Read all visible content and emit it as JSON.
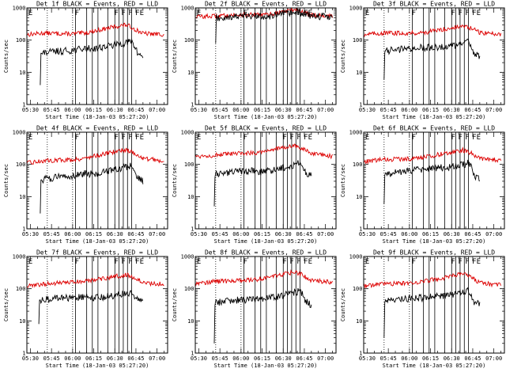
{
  "figure": {
    "colors": {
      "events": "#000000",
      "lld": "#dd0000",
      "background": "#ffffff"
    },
    "ylabel": "Counts/sec",
    "xlabel": "Start Time (18-Jan-03 05:27:20)",
    "yticks": [
      {
        "value": 1,
        "label": "1"
      },
      {
        "value": 10,
        "label": "10"
      },
      {
        "value": 100,
        "label": "100"
      },
      {
        "value": 1000,
        "label": "1000"
      }
    ],
    "xticks": [
      {
        "value": 0,
        "label": "05:30"
      },
      {
        "value": 15,
        "label": "05:45"
      },
      {
        "value": 30,
        "label": "06:00"
      },
      {
        "value": 45,
        "label": "06:15"
      },
      {
        "value": 60,
        "label": "06:30"
      },
      {
        "value": 75,
        "label": "06:45"
      },
      {
        "value": 90,
        "label": "07:00"
      }
    ]
  },
  "chart_data": [
    {
      "type": "line",
      "title": "Det 1f BLACK = Events, RED = LLD",
      "xlabel": "Start Time (18-Jan-03 05:27:20)",
      "ylabel": "Counts/sec",
      "xunits": "minutes after 05:30",
      "xlim": [
        -2.5,
        97.5
      ],
      "ylim": [
        1,
        1000
      ],
      "yscale": "log",
      "series": [
        {
          "name": "LLD",
          "color": "#dd0000",
          "x": [
            -2,
            10,
            30,
            40,
            50,
            60,
            68,
            74,
            80,
            95
          ],
          "y": [
            150,
            165,
            155,
            170,
            210,
            260,
            300,
            220,
            160,
            150
          ]
        },
        {
          "name": "Events",
          "color": "#000000",
          "start": 7,
          "spike_min": 4,
          "x": [
            7.5,
            10,
            20,
            30,
            40,
            45,
            55,
            65,
            72,
            76,
            80
          ],
          "y": [
            36,
            40,
            45,
            48,
            55,
            55,
            65,
            78,
            90,
            40,
            30
          ]
        }
      ],
      "dotted_lines": [
        12,
        30
      ],
      "solid_lines": [
        32,
        40,
        44,
        48,
        55,
        60,
        63,
        66,
        69,
        72
      ],
      "markers": [
        {
          "x": -2,
          "label": "E"
        },
        {
          "x": 31,
          "label": "F"
        },
        {
          "x": 59,
          "label": "F"
        },
        {
          "x": 64,
          "label": "F"
        },
        {
          "x": 69,
          "label": "F"
        },
        {
          "x": 74,
          "label": "FE"
        }
      ]
    },
    {
      "type": "line",
      "title": "Det 2f BLACK = Events, RED = LLD",
      "xlabel": "Start Time (18-Jan-03 05:27:20)",
      "ylabel": "Counts/sec",
      "xunits": "minutes after 05:30",
      "xlim": [
        -2.5,
        97.5
      ],
      "ylim": [
        1,
        1000
      ],
      "yscale": "log",
      "series": [
        {
          "name": "LLD",
          "color": "#dd0000",
          "x": [
            -2,
            10,
            30,
            40,
            50,
            60,
            68,
            74,
            80,
            95
          ],
          "y": [
            540,
            550,
            620,
            600,
            620,
            780,
            900,
            760,
            620,
            560
          ]
        },
        {
          "name": "Events",
          "color": "#000000",
          "start": 12,
          "spike_min": 80,
          "x": [
            12.5,
            20,
            30,
            40,
            50,
            60,
            70,
            76,
            80,
            95
          ],
          "y": [
            480,
            520,
            560,
            540,
            560,
            650,
            720,
            640,
            560,
            540
          ]
        }
      ],
      "dotted_lines": [
        12,
        30
      ],
      "solid_lines": [
        32,
        40,
        44,
        48,
        55,
        60,
        63,
        66,
        69,
        72
      ],
      "markers": [
        {
          "x": -2,
          "label": "E"
        },
        {
          "x": 31,
          "label": "F"
        },
        {
          "x": 59,
          "label": "F"
        },
        {
          "x": 64,
          "label": "F"
        },
        {
          "x": 69,
          "label": "F"
        },
        {
          "x": 74,
          "label": "FE"
        }
      ]
    },
    {
      "type": "line",
      "title": "Det 3f BLACK = Events, RED = LLD",
      "xlabel": "Start Time (18-Jan-03 05:27:20)",
      "ylabel": "Counts/sec",
      "xunits": "minutes after 05:30",
      "xlim": [
        -2.5,
        97.5
      ],
      "ylim": [
        1,
        1000
      ],
      "yscale": "log",
      "series": [
        {
          "name": "LLD",
          "color": "#dd0000",
          "x": [
            -2,
            10,
            30,
            40,
            50,
            60,
            68,
            74,
            80,
            95
          ],
          "y": [
            150,
            165,
            165,
            170,
            200,
            240,
            270,
            230,
            170,
            155
          ]
        },
        {
          "name": "Events",
          "color": "#000000",
          "start": 12,
          "spike_min": 6,
          "x": [
            12.5,
            20,
            30,
            40,
            45,
            55,
            65,
            72,
            76,
            80
          ],
          "y": [
            45,
            50,
            55,
            58,
            60,
            62,
            70,
            85,
            40,
            32
          ]
        }
      ],
      "dotted_lines": [
        12,
        30
      ],
      "solid_lines": [
        32,
        40,
        44,
        48,
        55,
        60,
        63,
        66,
        69,
        72
      ],
      "markers": [
        {
          "x": -2,
          "label": "E"
        },
        {
          "x": 31,
          "label": "F"
        },
        {
          "x": 59,
          "label": "F"
        },
        {
          "x": 64,
          "label": "F"
        },
        {
          "x": 69,
          "label": "F"
        },
        {
          "x": 74,
          "label": "FE"
        }
      ]
    },
    {
      "type": "line",
      "title": "Det 4f BLACK = Events, RED = LLD",
      "xlabel": "Start Time (18-Jan-03 05:27:20)",
      "ylabel": "Counts/sec",
      "xunits": "minutes after 05:30",
      "xlim": [
        -2.5,
        97.5
      ],
      "ylim": [
        1,
        1000
      ],
      "yscale": "log",
      "series": [
        {
          "name": "LLD",
          "color": "#dd0000",
          "x": [
            -2,
            10,
            30,
            40,
            50,
            60,
            68,
            74,
            80,
            95
          ],
          "y": [
            110,
            130,
            140,
            160,
            200,
            250,
            290,
            220,
            150,
            130
          ]
        },
        {
          "name": "Events",
          "color": "#000000",
          "start": 7,
          "spike_min": 3,
          "x": [
            7.5,
            10,
            20,
            30,
            40,
            45,
            55,
            65,
            72,
            76,
            80
          ],
          "y": [
            30,
            35,
            40,
            45,
            52,
            50,
            60,
            75,
            90,
            38,
            30
          ]
        }
      ],
      "dotted_lines": [
        12,
        30
      ],
      "solid_lines": [
        32,
        40,
        44,
        48,
        55,
        60,
        63,
        66,
        69,
        72
      ],
      "markers": [
        {
          "x": -2,
          "label": "E"
        },
        {
          "x": 31,
          "label": "F"
        },
        {
          "x": 59,
          "label": "F"
        },
        {
          "x": 64,
          "label": "F"
        },
        {
          "x": 69,
          "label": "F"
        },
        {
          "x": 74,
          "label": "FE"
        }
      ]
    },
    {
      "type": "line",
      "title": "Det 5f BLACK = Events, RED = LLD",
      "xlabel": "Start Time (18-Jan-03 05:27:20)",
      "ylabel": "Counts/sec",
      "xunits": "minutes after 05:30",
      "xlim": [
        -2.5,
        97.5
      ],
      "ylim": [
        1,
        1000
      ],
      "yscale": "log",
      "series": [
        {
          "name": "LLD",
          "color": "#dd0000",
          "x": [
            -2,
            10,
            30,
            40,
            50,
            60,
            68,
            74,
            80,
            95
          ],
          "y": [
            180,
            190,
            220,
            230,
            280,
            330,
            380,
            300,
            210,
            180
          ]
        },
        {
          "name": "Events",
          "color": "#000000",
          "start": 11,
          "spike_min": 5,
          "x": [
            11.5,
            20,
            30,
            40,
            45,
            55,
            65,
            72,
            76,
            80
          ],
          "y": [
            50,
            55,
            60,
            62,
            58,
            70,
            90,
            110,
            55,
            45
          ]
        }
      ],
      "dotted_lines": [
        12,
        30
      ],
      "solid_lines": [
        32,
        40,
        44,
        48,
        55,
        60,
        63,
        66,
        69,
        72
      ],
      "markers": [
        {
          "x": -2,
          "label": "E"
        },
        {
          "x": 31,
          "label": "F"
        },
        {
          "x": 59,
          "label": "F"
        },
        {
          "x": 64,
          "label": "F"
        },
        {
          "x": 69,
          "label": "F"
        },
        {
          "x": 74,
          "label": "FE"
        }
      ]
    },
    {
      "type": "line",
      "title": "Det 6f BLACK = Events, RED = LLD",
      "xlabel": "Start Time (18-Jan-03 05:27:20)",
      "ylabel": "Counts/sec",
      "xunits": "minutes after 05:30",
      "xlim": [
        -2.5,
        97.5
      ],
      "ylim": [
        1,
        1000
      ],
      "yscale": "log",
      "series": [
        {
          "name": "LLD",
          "color": "#dd0000",
          "x": [
            -2,
            10,
            30,
            40,
            50,
            60,
            68,
            74,
            80,
            95
          ],
          "y": [
            120,
            140,
            150,
            165,
            200,
            240,
            280,
            220,
            150,
            130
          ]
        },
        {
          "name": "Events",
          "color": "#000000",
          "start": 12,
          "spike_min": 6,
          "x": [
            12.5,
            20,
            30,
            40,
            45,
            55,
            65,
            72,
            76,
            80
          ],
          "y": [
            50,
            55,
            65,
            70,
            75,
            80,
            90,
            110,
            45,
            35
          ]
        }
      ],
      "dotted_lines": [
        12,
        30
      ],
      "solid_lines": [
        32,
        40,
        44,
        48,
        55,
        60,
        63,
        66,
        69,
        72
      ],
      "markers": [
        {
          "x": -2,
          "label": "E"
        },
        {
          "x": 31,
          "label": "F"
        },
        {
          "x": 59,
          "label": "F"
        },
        {
          "x": 64,
          "label": "F"
        },
        {
          "x": 69,
          "label": "F"
        },
        {
          "x": 74,
          "label": "FE"
        }
      ]
    },
    {
      "type": "line",
      "title": "Det 7f BLACK = Events, RED = LLD",
      "xlabel": "Start Time (18-Jan-03 05:27:20)",
      "ylabel": "Counts/sec",
      "xunits": "minutes after 05:30",
      "xlim": [
        -2.5,
        97.5
      ],
      "ylim": [
        1,
        1000
      ],
      "yscale": "log",
      "series": [
        {
          "name": "LLD",
          "color": "#dd0000",
          "x": [
            -2,
            10,
            30,
            40,
            50,
            60,
            68,
            74,
            80,
            95
          ],
          "y": [
            120,
            140,
            160,
            170,
            200,
            240,
            270,
            220,
            150,
            140
          ]
        },
        {
          "name": "Events",
          "color": "#000000",
          "start": 6,
          "spike_min": 8,
          "x": [
            6.5,
            10,
            20,
            30,
            40,
            45,
            55,
            65,
            72,
            76,
            80
          ],
          "y": [
            40,
            45,
            50,
            52,
            55,
            50,
            58,
            65,
            70,
            45,
            40
          ]
        }
      ],
      "dotted_lines": [
        12,
        30
      ],
      "solid_lines": [
        32,
        40,
        44,
        48,
        55,
        60,
        63,
        66,
        69,
        72
      ],
      "markers": [
        {
          "x": -2,
          "label": "E"
        },
        {
          "x": 31,
          "label": "F"
        },
        {
          "x": 59,
          "label": "F"
        },
        {
          "x": 64,
          "label": "F"
        },
        {
          "x": 69,
          "label": "F"
        },
        {
          "x": 74,
          "label": "FE"
        }
      ]
    },
    {
      "type": "line",
      "title": "Det 8f BLACK = Events, RED = LLD",
      "xlabel": "Start Time (18-Jan-03 05:27:20)",
      "ylabel": "Counts/sec",
      "xunits": "minutes after 05:30",
      "xlim": [
        -2.5,
        97.5
      ],
      "ylim": [
        1,
        1000
      ],
      "yscale": "log",
      "series": [
        {
          "name": "LLD",
          "color": "#dd0000",
          "x": [
            -2,
            10,
            30,
            40,
            50,
            60,
            68,
            74,
            80,
            95
          ],
          "y": [
            150,
            165,
            180,
            190,
            230,
            280,
            330,
            260,
            180,
            160
          ]
        },
        {
          "name": "Events",
          "color": "#000000",
          "start": 11,
          "spike_min": 2,
          "x": [
            11.5,
            20,
            30,
            40,
            45,
            55,
            65,
            72,
            76,
            80
          ],
          "y": [
            38,
            40,
            45,
            48,
            50,
            55,
            70,
            85,
            40,
            30
          ]
        }
      ],
      "dotted_lines": [
        12,
        30
      ],
      "solid_lines": [
        32,
        40,
        44,
        48,
        55,
        60,
        63,
        66,
        69,
        72
      ],
      "markers": [
        {
          "x": -2,
          "label": "E"
        },
        {
          "x": 31,
          "label": "F"
        },
        {
          "x": 59,
          "label": "F"
        },
        {
          "x": 64,
          "label": "F"
        },
        {
          "x": 69,
          "label": "F"
        },
        {
          "x": 74,
          "label": "FE"
        }
      ]
    },
    {
      "type": "line",
      "title": "Det 9f BLACK = Events, RED = LLD",
      "xlabel": "Start Time (18-Jan-03 05:27:20)",
      "ylabel": "Counts/sec",
      "xunits": "minutes after 05:30",
      "xlim": [
        -2.5,
        97.5
      ],
      "ylim": [
        1,
        1000
      ],
      "yscale": "log",
      "series": [
        {
          "name": "LLD",
          "color": "#dd0000",
          "x": [
            -2,
            10,
            30,
            40,
            50,
            60,
            68,
            74,
            80,
            95
          ],
          "y": [
            120,
            140,
            150,
            170,
            200,
            240,
            290,
            220,
            150,
            130
          ]
        },
        {
          "name": "Events",
          "color": "#000000",
          "start": 12,
          "spike_min": 3,
          "x": [
            12.5,
            20,
            30,
            40,
            45,
            55,
            65,
            72,
            76,
            80
          ],
          "y": [
            40,
            45,
            50,
            52,
            55,
            60,
            72,
            85,
            40,
            30
          ]
        }
      ],
      "dotted_lines": [
        12,
        30
      ],
      "solid_lines": [
        32,
        40,
        44,
        48,
        55,
        60,
        63,
        66,
        69,
        72
      ],
      "markers": [
        {
          "x": -2,
          "label": "E"
        },
        {
          "x": 31,
          "label": "F"
        },
        {
          "x": 59,
          "label": "F"
        },
        {
          "x": 64,
          "label": "F"
        },
        {
          "x": 69,
          "label": "F"
        },
        {
          "x": 74,
          "label": "FE"
        }
      ]
    }
  ]
}
